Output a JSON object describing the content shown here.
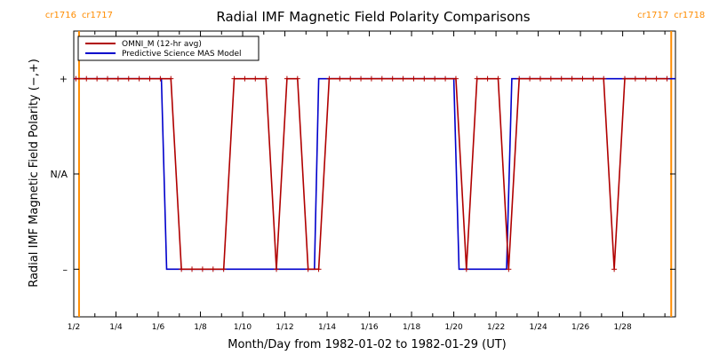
{
  "chart_data": {
    "type": "line",
    "title": "Radial IMF Magnetic Field Polarity Comparisons",
    "xlabel": "Month/Day from 1982-01-02 to 1982-01-29 (UT)",
    "ylabel": "Radial IMF Magnetic Field Polarity (−,+)",
    "x_range": [
      "1982-01-02",
      "1982-01-29"
    ],
    "x_unit": "days after 1982-01-02 00:00 UT",
    "xlim": [
      0,
      28.5
    ],
    "ylim": [
      -1.5,
      1.5
    ],
    "x_ticks": [
      {
        "value": 0,
        "label": "1/2"
      },
      {
        "value": 2,
        "label": "1/4"
      },
      {
        "value": 4,
        "label": "1/6"
      },
      {
        "value": 6,
        "label": "1/8"
      },
      {
        "value": 8,
        "label": "1/10"
      },
      {
        "value": 10,
        "label": "1/12"
      },
      {
        "value": 12,
        "label": "1/14"
      },
      {
        "value": 14,
        "label": "1/16"
      },
      {
        "value": 16,
        "label": "1/18"
      },
      {
        "value": 18,
        "label": "1/20"
      },
      {
        "value": 20,
        "label": "1/22"
      },
      {
        "value": 22,
        "label": "1/24"
      },
      {
        "value": 24,
        "label": "1/26"
      },
      {
        "value": 26,
        "label": "1/28"
      }
    ],
    "y_ticks": [
      {
        "value": 1,
        "label": "+"
      },
      {
        "value": 0,
        "label": "N/A"
      },
      {
        "value": -1,
        "label": "–"
      }
    ],
    "carrington_markers": [
      {
        "x": 0.25,
        "left_label": "cr1716",
        "right_label": "cr1717"
      },
      {
        "x": 28.3,
        "left_label": "cr1717",
        "right_label": "cr1718"
      }
    ],
    "legend_position": "top-left",
    "series": [
      {
        "name": "OMNI_M (12-hr avg)",
        "color": "#b00000",
        "markers": true,
        "points": [
          [
            0.1,
            1
          ],
          [
            0.6,
            1
          ],
          [
            1.1,
            1
          ],
          [
            1.6,
            1
          ],
          [
            2.1,
            1
          ],
          [
            2.6,
            1
          ],
          [
            3.1,
            1
          ],
          [
            3.6,
            1
          ],
          [
            4.1,
            1
          ],
          [
            4.6,
            1
          ],
          [
            5.1,
            -1
          ],
          [
            5.6,
            -1
          ],
          [
            6.1,
            -1
          ],
          [
            6.6,
            -1
          ],
          [
            7.1,
            -1
          ],
          [
            7.6,
            1
          ],
          [
            8.1,
            1
          ],
          [
            8.6,
            1
          ],
          [
            9.1,
            1
          ],
          [
            9.6,
            -1
          ],
          [
            10.1,
            1
          ],
          [
            10.6,
            1
          ],
          [
            11.1,
            -1
          ],
          [
            11.6,
            -1
          ],
          [
            12.1,
            1
          ],
          [
            12.6,
            1
          ],
          [
            13.1,
            1
          ],
          [
            13.6,
            1
          ],
          [
            14.1,
            1
          ],
          [
            14.6,
            1
          ],
          [
            15.1,
            1
          ],
          [
            15.6,
            1
          ],
          [
            16.1,
            1
          ],
          [
            16.6,
            1
          ],
          [
            17.1,
            1
          ],
          [
            17.6,
            1
          ],
          [
            18.1,
            1
          ],
          [
            18.6,
            -1
          ],
          [
            19.1,
            1
          ],
          [
            19.6,
            1
          ],
          [
            20.1,
            1
          ],
          [
            20.6,
            -1
          ],
          [
            21.1,
            1
          ],
          [
            21.6,
            1
          ],
          [
            22.1,
            1
          ],
          [
            22.6,
            1
          ],
          [
            23.1,
            1
          ],
          [
            23.6,
            1
          ],
          [
            24.1,
            1
          ],
          [
            24.6,
            1
          ],
          [
            25.1,
            1
          ],
          [
            25.6,
            -1
          ],
          [
            26.1,
            1
          ],
          [
            26.6,
            1
          ],
          [
            27.1,
            1
          ],
          [
            27.6,
            1
          ],
          [
            28.1,
            1
          ]
        ]
      },
      {
        "name": "Predictive Science MAS Model",
        "color": "#0000cc",
        "markers": false,
        "points": [
          [
            0.0,
            1
          ],
          [
            4.15,
            1
          ],
          [
            4.4,
            -1
          ],
          [
            11.4,
            -1
          ],
          [
            11.6,
            1
          ],
          [
            18.0,
            1
          ],
          [
            18.25,
            -1
          ],
          [
            20.5,
            -1
          ],
          [
            20.75,
            1
          ],
          [
            28.5,
            1
          ]
        ]
      }
    ]
  }
}
